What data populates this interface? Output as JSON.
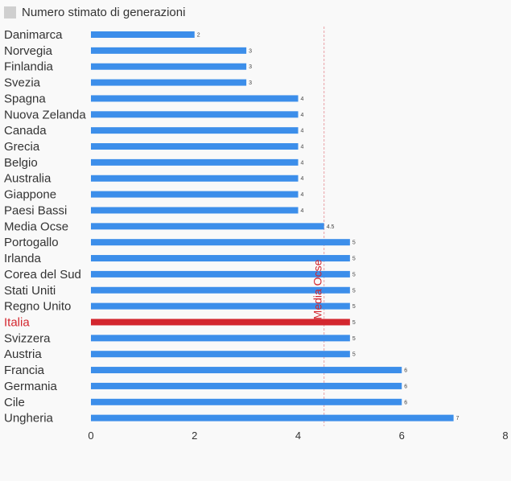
{
  "legend": {
    "label": "Numero stimato di generazioni",
    "color": "#cfcfcf"
  },
  "colors": {
    "bar": "#3c8eea",
    "highlight": "#d3262e",
    "reference": "#e8a0a4",
    "label": "#333333"
  },
  "chart_data": {
    "type": "bar",
    "orientation": "horizontal",
    "categories": [
      "Danimarca",
      "Norvegia",
      "Finlandia",
      "Svezia",
      "Spagna",
      "Nuova Zelanda",
      "Canada",
      "Grecia",
      "Belgio",
      "Australia",
      "Giappone",
      "Paesi Bassi",
      "Media Ocse",
      "Portogallo",
      "Irlanda",
      "Corea del Sud",
      "Stati Uniti",
      "Regno Unito",
      "Italia",
      "Svizzera",
      "Austria",
      "Francia",
      "Germania",
      "Cile",
      "Ungheria"
    ],
    "series": [
      {
        "name": "Numero stimato di generazioni",
        "values": [
          2,
          3,
          3,
          3,
          4,
          4,
          4,
          4,
          4,
          4,
          4,
          4,
          4.5,
          5,
          5,
          5,
          5,
          5,
          5,
          5,
          5,
          6,
          6,
          6,
          7
        ],
        "value_labels": [
          "2",
          "3",
          "3",
          "3",
          "4",
          "4",
          "4",
          "4",
          "4",
          "4",
          "4",
          "4",
          "4.5",
          "5",
          "5",
          "5",
          "5",
          "5",
          "5",
          "5",
          "5",
          "6",
          "6",
          "6",
          "7"
        ]
      }
    ],
    "highlight": "Italia",
    "reference_line": {
      "value": 4.5,
      "label": "Media Ocse"
    },
    "xlim": [
      0,
      8
    ],
    "xticks": [
      0,
      2,
      4,
      6,
      8
    ],
    "xlabel": "",
    "ylabel": "",
    "title": "",
    "grid": false,
    "legend_position": "top-left"
  }
}
